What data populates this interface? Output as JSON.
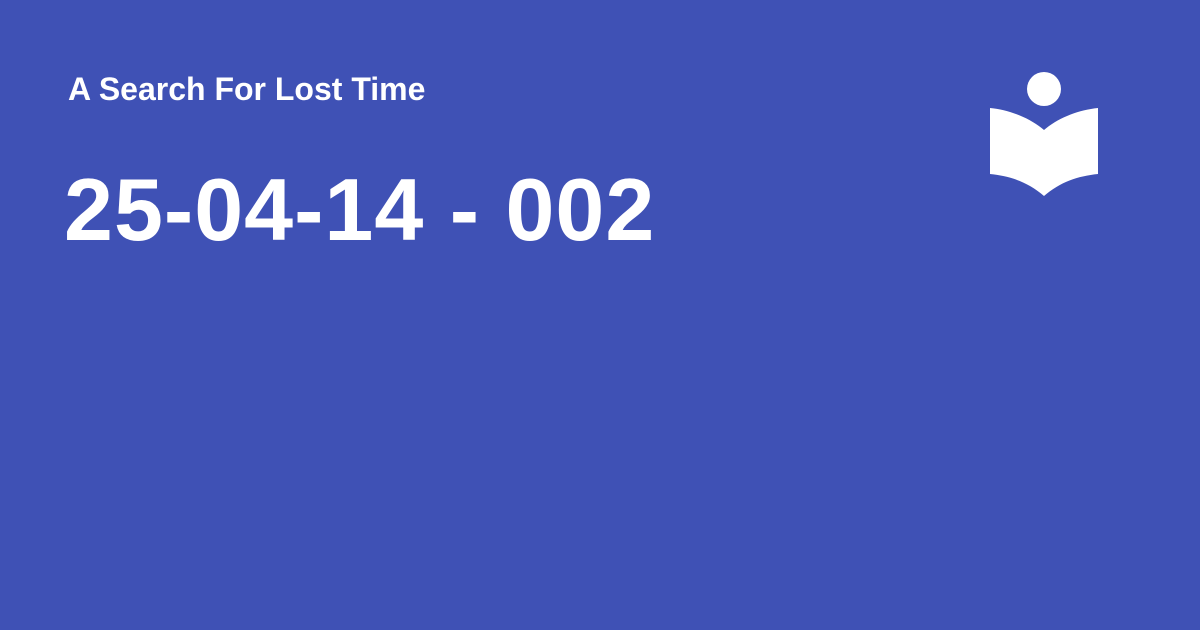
{
  "header": {
    "site_title": "A Search For Lost Time"
  },
  "main": {
    "page_title": "25-04-14 - 002"
  },
  "logo": {
    "icon": "reader-book-icon",
    "color": "#ffffff"
  },
  "theme": {
    "background": "#3f51b5",
    "text": "#ffffff"
  }
}
